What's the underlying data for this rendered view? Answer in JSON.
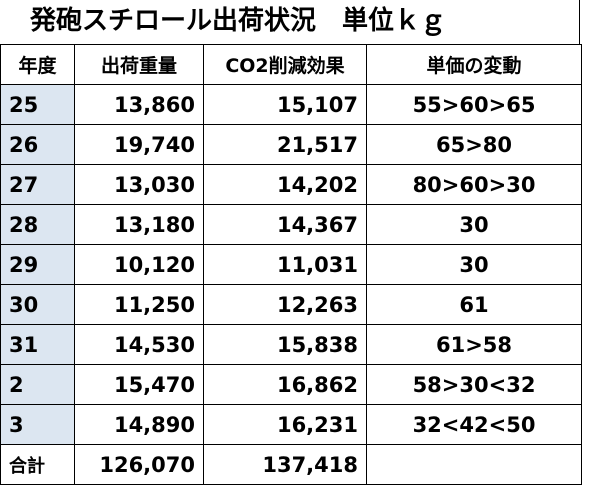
{
  "title": "発砲スチロール出荷状況　単位ｋｇ",
  "table": {
    "header": [
      "年度",
      "出荷重量",
      "CO2削減効果",
      "単価の変動"
    ],
    "rows": [
      [
        "25",
        "13,860",
        "15,107",
        "55>60>65"
      ],
      [
        "26",
        "19,740",
        "21,517",
        "65>80"
      ],
      [
        "27",
        "13,030",
        "14,202",
        "80>60>30"
      ],
      [
        "28",
        "13,180",
        "14,367",
        "30"
      ],
      [
        "29",
        "10,120",
        "11,031",
        "30"
      ],
      [
        "30",
        "11,250",
        "12,263",
        "61"
      ],
      [
        "31",
        "14,530",
        "15,838",
        "61>58"
      ],
      [
        "2",
        "15,470",
        "16,862",
        "58>30<32"
      ],
      [
        "3",
        "14,890",
        "16,231",
        "32<42<50"
      ]
    ],
    "total": [
      "合計",
      "126,070",
      "137,418"
    ]
  }
}
